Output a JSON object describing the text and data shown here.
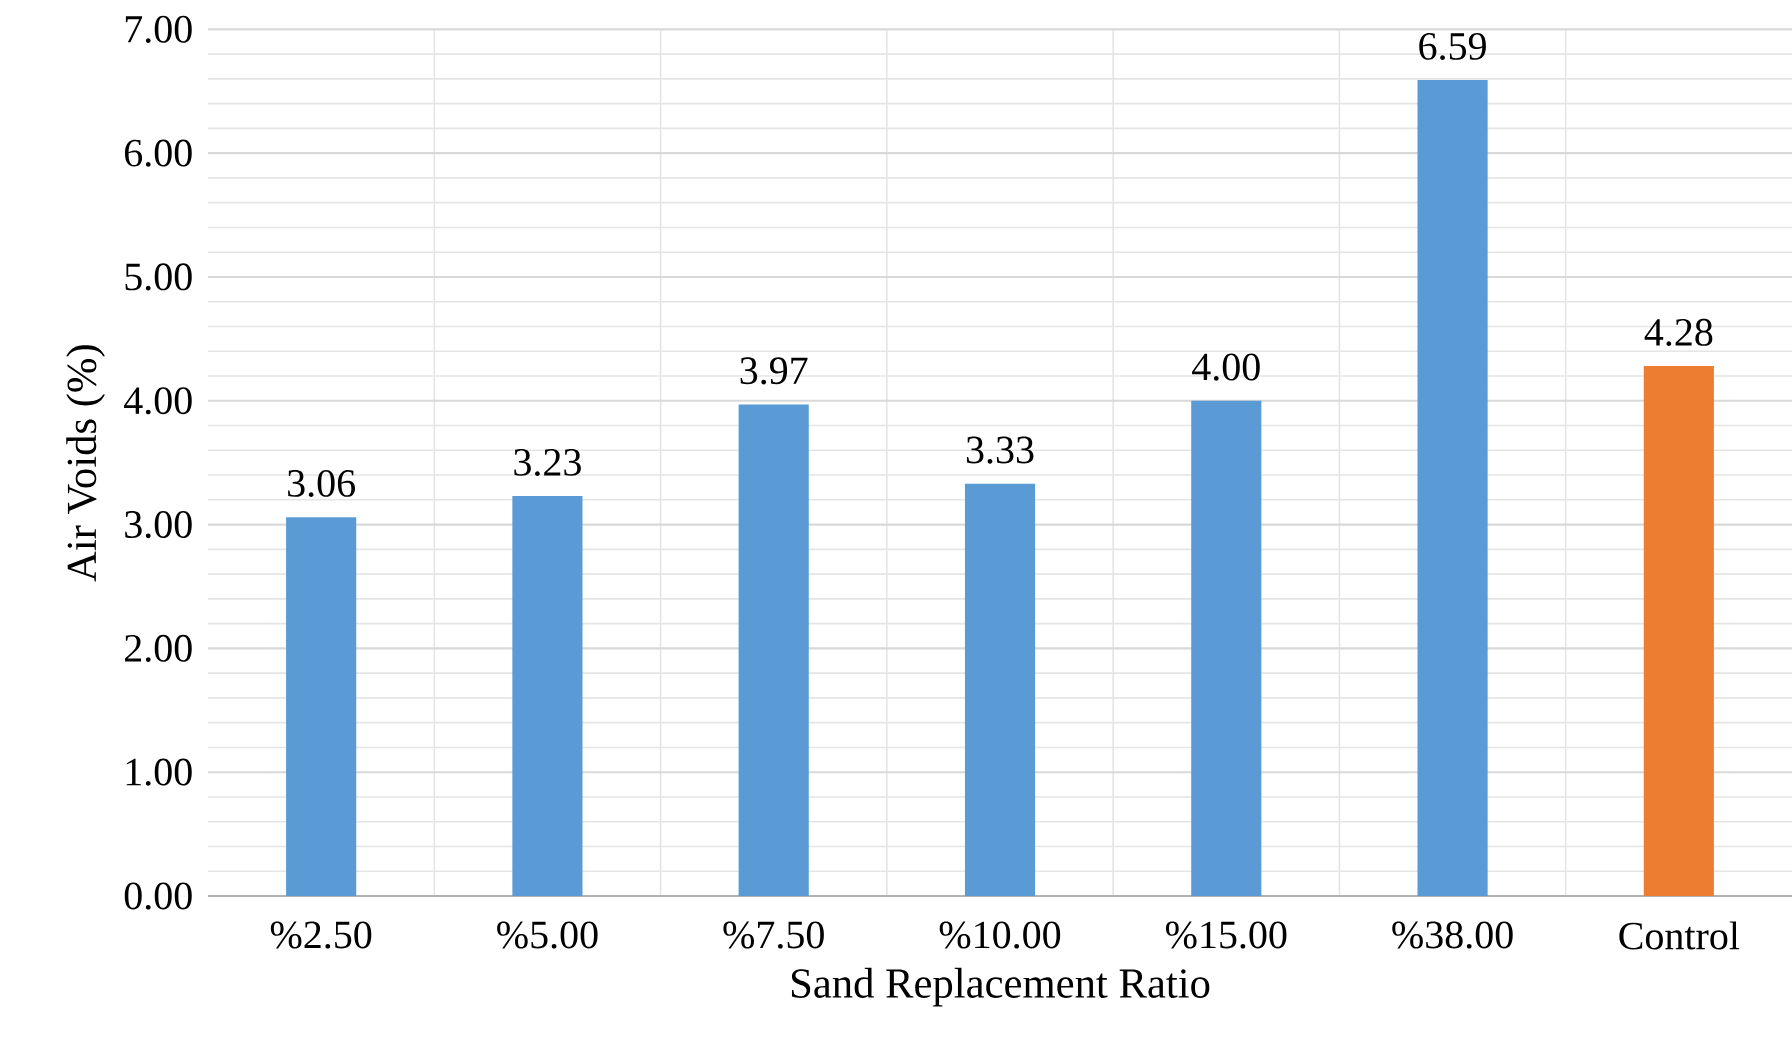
{
  "chart_data": {
    "type": "bar",
    "xlabel": "Sand Replacement Ratio",
    "ylabel": "Air Voids (%)",
    "categories": [
      "%2.50",
      "%5.00",
      "%7.50",
      "%10.00",
      "%15.00",
      "%38.00",
      "Control"
    ],
    "values": [
      3.06,
      3.23,
      3.97,
      3.33,
      4.0,
      6.59,
      4.28
    ],
    "colors": [
      "#5b9bd5",
      "#5b9bd5",
      "#5b9bd5",
      "#5b9bd5",
      "#5b9bd5",
      "#5b9bd5",
      "#ed7d31"
    ],
    "value_labels": [
      "3.06",
      "3.23",
      "3.97",
      "3.33",
      "4.00",
      "6.59",
      "4.28"
    ],
    "ylim": [
      0,
      7
    ],
    "yticks": [
      {
        "value": 0,
        "label": "0.00"
      },
      {
        "value": 1,
        "label": "1.00"
      },
      {
        "value": 2,
        "label": "2.00"
      },
      {
        "value": 3,
        "label": "3.00"
      },
      {
        "value": 4,
        "label": "4.00"
      },
      {
        "value": 5,
        "label": "5.00"
      },
      {
        "value": 6,
        "label": "6.00"
      },
      {
        "value": 7,
        "label": "7.00"
      }
    ],
    "grid": true
  }
}
